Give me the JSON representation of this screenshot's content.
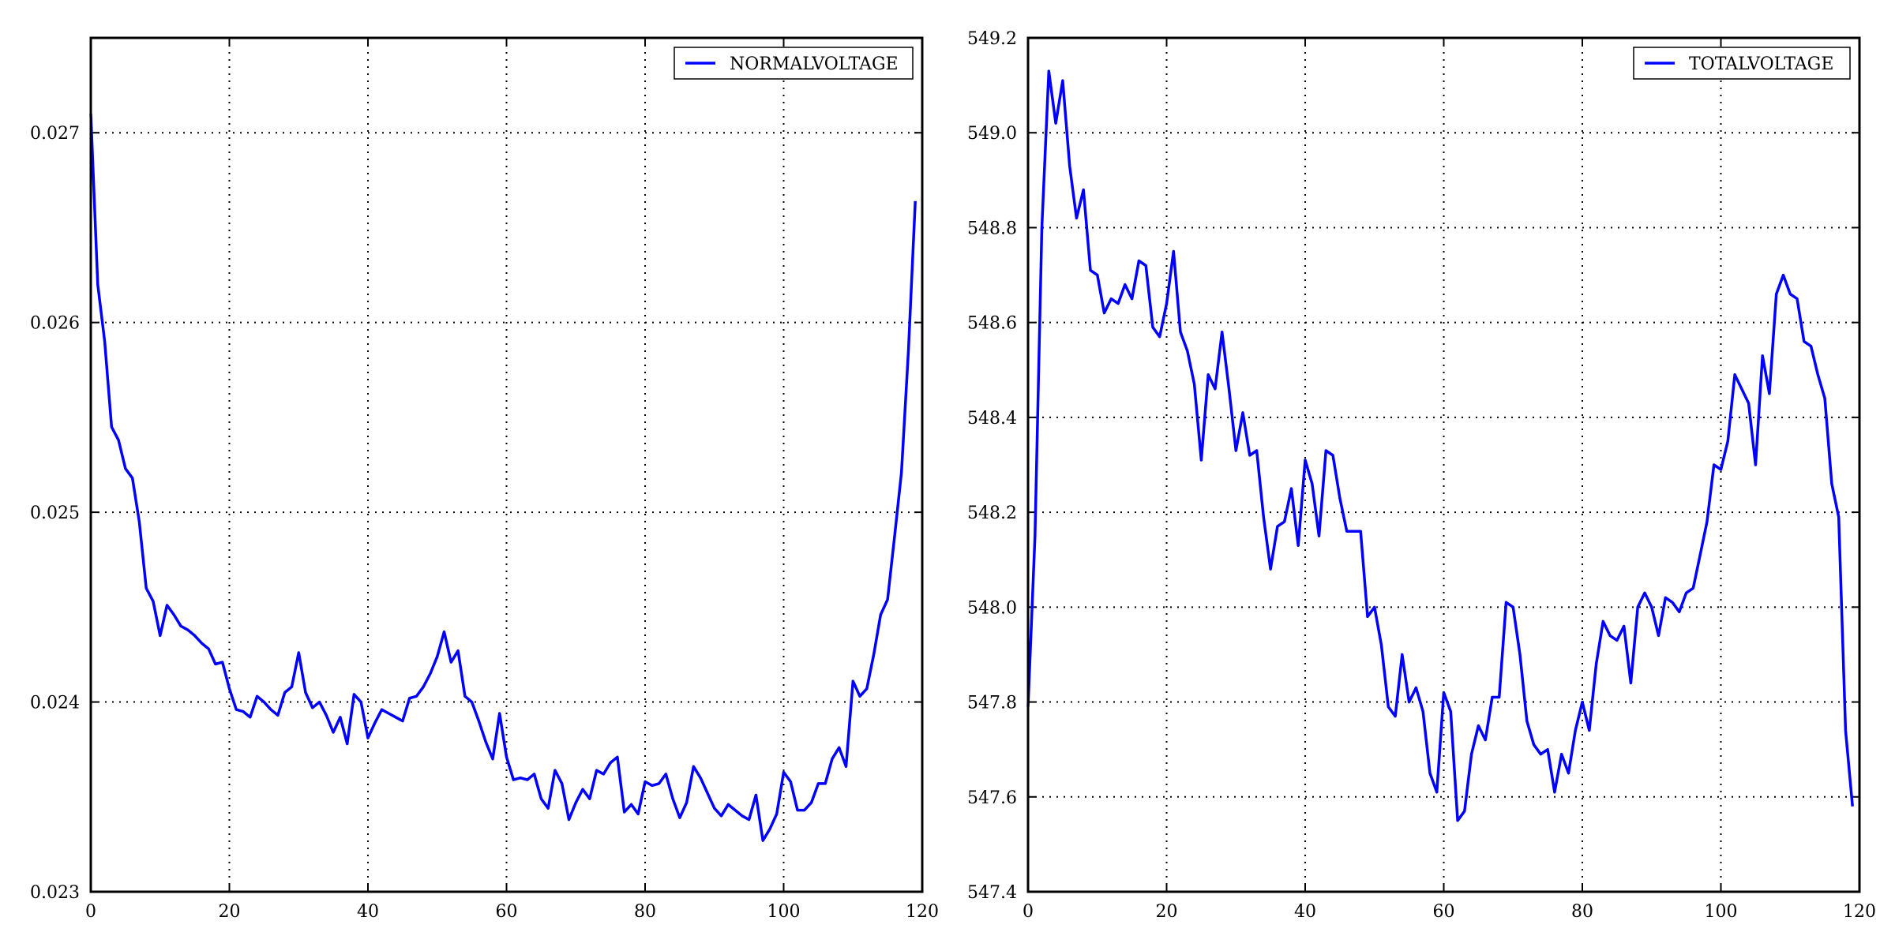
{
  "chart_data": [
    {
      "type": "line",
      "title": "",
      "xlabel": "",
      "ylabel": "",
      "xlim": [
        0,
        120
      ],
      "ylim": [
        0.023,
        0.0275
      ],
      "xticks": [
        "0",
        "20",
        "40",
        "60",
        "80",
        "100",
        "120"
      ],
      "yticks": [
        "0.023",
        "0.024",
        "0.025",
        "0.026",
        "0.027"
      ],
      "grid": true,
      "legend_position": "top-right",
      "color": "#0000ff",
      "series": [
        {
          "name": "NORMALVOLTAGE",
          "x": [
            0,
            1,
            2,
            3,
            4,
            5,
            6,
            7,
            8,
            9,
            10,
            11,
            12,
            13,
            14,
            15,
            16,
            17,
            18,
            19,
            20,
            21,
            22,
            23,
            24,
            25,
            26,
            27,
            28,
            29,
            30,
            31,
            32,
            33,
            34,
            35,
            36,
            37,
            38,
            39,
            40,
            41,
            42,
            43,
            44,
            45,
            46,
            47,
            48,
            49,
            50,
            51,
            52,
            53,
            54,
            55,
            56,
            57,
            58,
            59,
            60,
            61,
            62,
            63,
            64,
            65,
            66,
            67,
            68,
            69,
            70,
            71,
            72,
            73,
            74,
            75,
            76,
            77,
            78,
            79,
            80,
            81,
            82,
            83,
            84,
            85,
            86,
            87,
            88,
            89,
            90,
            91,
            92,
            93,
            94,
            95,
            96,
            97,
            98,
            99,
            100,
            101,
            102,
            103,
            104,
            105,
            106,
            107,
            108,
            109,
            110,
            111,
            112,
            113,
            114,
            115,
            116,
            117,
            118,
            119
          ],
          "values": [
            0.0271,
            0.0262,
            0.0259,
            0.02545,
            0.02538,
            0.02523,
            0.02518,
            0.02495,
            0.0246,
            0.02453,
            0.02435,
            0.02451,
            0.02446,
            0.0244,
            0.02438,
            0.02435,
            0.02431,
            0.02428,
            0.0242,
            0.02421,
            0.02407,
            0.02396,
            0.02395,
            0.02392,
            0.02403,
            0.024,
            0.02396,
            0.02393,
            0.02405,
            0.02408,
            0.02426,
            0.02405,
            0.02397,
            0.024,
            0.02393,
            0.02384,
            0.02392,
            0.02378,
            0.02404,
            0.024,
            0.02381,
            0.02389,
            0.02396,
            0.02394,
            0.02392,
            0.0239,
            0.02402,
            0.02403,
            0.02408,
            0.02415,
            0.02424,
            0.02437,
            0.02421,
            0.02427,
            0.02403,
            0.024,
            0.0239,
            0.02379,
            0.0237,
            0.02394,
            0.02371,
            0.02359,
            0.0236,
            0.02359,
            0.02362,
            0.02349,
            0.02344,
            0.02364,
            0.02357,
            0.02338,
            0.02347,
            0.02354,
            0.02349,
            0.02364,
            0.02362,
            0.02368,
            0.02371,
            0.02342,
            0.02346,
            0.02341,
            0.02358,
            0.02356,
            0.02357,
            0.02362,
            0.02349,
            0.02339,
            0.02347,
            0.02366,
            0.0236,
            0.02352,
            0.02344,
            0.0234,
            0.02346,
            0.02343,
            0.0234,
            0.02338,
            0.02351,
            0.02327,
            0.02333,
            0.02341,
            0.02363,
            0.02358,
            0.02343,
            0.02343,
            0.02347,
            0.02357,
            0.02357,
            0.0237,
            0.02376,
            0.02366,
            0.02411,
            0.02403,
            0.02407,
            0.02425,
            0.02446,
            0.02454,
            0.02487,
            0.02521,
            0.02585,
            0.02664
          ]
        }
      ]
    },
    {
      "type": "line",
      "title": "",
      "xlabel": "",
      "ylabel": "",
      "xlim": [
        0,
        120
      ],
      "ylim": [
        547.4,
        549.2
      ],
      "xticks": [
        "0",
        "20",
        "40",
        "60",
        "80",
        "100",
        "120"
      ],
      "yticks": [
        "547.4",
        "547.6",
        "547.8",
        "548.0",
        "548.2",
        "548.4",
        "548.6",
        "548.8",
        "549.0",
        "549.2"
      ],
      "grid": true,
      "legend_position": "top-right",
      "color": "#0000ff",
      "series": [
        {
          "name": "TOTALVOLTAGE",
          "x": [
            0,
            1,
            2,
            3,
            4,
            5,
            6,
            7,
            8,
            9,
            10,
            11,
            12,
            13,
            14,
            15,
            16,
            17,
            18,
            19,
            20,
            21,
            22,
            23,
            24,
            25,
            26,
            27,
            28,
            29,
            30,
            31,
            32,
            33,
            34,
            35,
            36,
            37,
            38,
            39,
            40,
            41,
            42,
            43,
            44,
            45,
            46,
            47,
            48,
            49,
            50,
            51,
            52,
            53,
            54,
            55,
            56,
            57,
            58,
            59,
            60,
            61,
            62,
            63,
            64,
            65,
            66,
            67,
            68,
            69,
            70,
            71,
            72,
            73,
            74,
            75,
            76,
            77,
            78,
            79,
            80,
            81,
            82,
            83,
            84,
            85,
            86,
            87,
            88,
            89,
            90,
            91,
            92,
            93,
            94,
            95,
            96,
            97,
            98,
            99,
            100,
            101,
            102,
            103,
            104,
            105,
            106,
            107,
            108,
            109,
            110,
            111,
            112,
            113,
            114,
            115,
            116,
            117,
            118,
            119
          ],
          "values": [
            547.79,
            548.15,
            548.8,
            549.13,
            549.02,
            549.11,
            548.93,
            548.82,
            548.88,
            548.71,
            548.7,
            548.62,
            548.65,
            548.64,
            548.68,
            548.65,
            548.73,
            548.72,
            548.59,
            548.57,
            548.64,
            548.75,
            548.58,
            548.54,
            548.47,
            548.31,
            548.49,
            548.46,
            548.58,
            548.46,
            548.33,
            548.41,
            548.32,
            548.33,
            548.19,
            548.08,
            548.17,
            548.18,
            548.25,
            548.13,
            548.31,
            548.26,
            548.15,
            548.33,
            548.32,
            548.23,
            548.16,
            548.16,
            548.16,
            547.98,
            548.0,
            547.92,
            547.79,
            547.77,
            547.9,
            547.8,
            547.83,
            547.78,
            547.65,
            547.61,
            547.82,
            547.78,
            547.55,
            547.57,
            547.69,
            547.75,
            547.72,
            547.81,
            547.81,
            548.01,
            548.0,
            547.9,
            547.76,
            547.71,
            547.69,
            547.7,
            547.61,
            547.69,
            547.65,
            547.74,
            547.8,
            547.74,
            547.88,
            547.97,
            547.94,
            547.93,
            547.96,
            547.84,
            548.0,
            548.03,
            548.0,
            547.94,
            548.02,
            548.01,
            547.99,
            548.03,
            548.04,
            548.11,
            548.18,
            548.3,
            548.29,
            548.35,
            548.49,
            548.46,
            548.43,
            548.3,
            548.53,
            548.45,
            548.66,
            548.7,
            548.66,
            548.65,
            548.56,
            548.55,
            548.49,
            548.44,
            548.26,
            548.19,
            547.74,
            547.58
          ]
        }
      ]
    }
  ]
}
